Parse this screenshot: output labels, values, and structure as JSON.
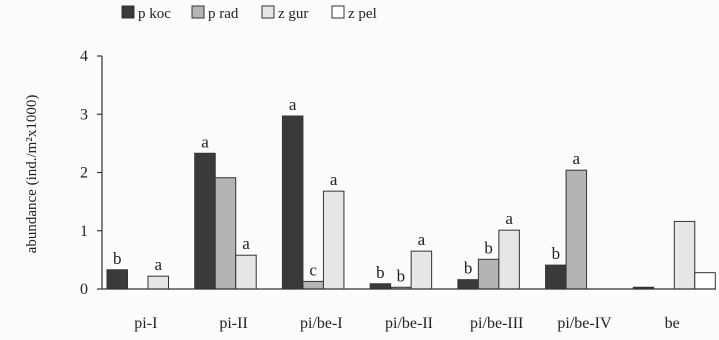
{
  "chart_data": {
    "type": "bar",
    "ylabel": "abundance (ind./m²x1000)",
    "ylim": [
      0,
      4
    ],
    "yticks": [
      "0",
      "1",
      "2",
      "3",
      "4"
    ],
    "grid": false,
    "legend_position": "top-left",
    "categories": [
      "pi-I",
      "pi-II",
      "pi/be-I",
      "pi/be-II",
      "pi/be-III",
      "pi/be-IV",
      "be"
    ],
    "series": [
      {
        "name": "p koc",
        "color": "#3a3a3a",
        "values": [
          0.33,
          2.33,
          2.97,
          0.09,
          0.16,
          0.41,
          0.03
        ],
        "labels": [
          "b",
          "a",
          "a",
          "b",
          "b",
          "b",
          ""
        ]
      },
      {
        "name": "p rad",
        "color": "#b4b4b4",
        "values": [
          0,
          1.91,
          0.13,
          0.03,
          0.51,
          2.04,
          0
        ],
        "labels": [
          "",
          "",
          "c",
          "b",
          "b",
          "a",
          ""
        ]
      },
      {
        "name": "z gur",
        "color": "#e6e6e6",
        "values": [
          0.22,
          0.58,
          1.68,
          0.65,
          1.01,
          0,
          1.16
        ],
        "labels": [
          "a",
          "a",
          "a",
          "a",
          "a",
          "",
          ""
        ]
      },
      {
        "name": "z pel",
        "color": "#ffffff",
        "values": [
          0,
          0,
          0,
          0,
          0,
          0,
          0.28
        ],
        "labels": [
          "",
          "",
          "",
          "",
          "",
          "",
          ""
        ]
      }
    ]
  }
}
